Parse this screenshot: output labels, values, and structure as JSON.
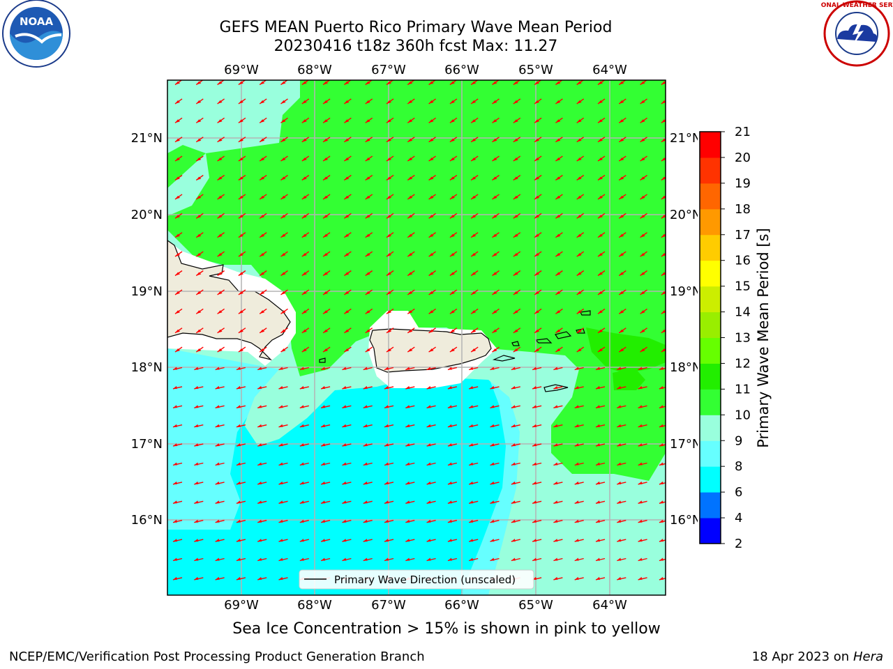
{
  "header": {
    "title_line1": "GEFS MEAN Puerto Rico Primary Wave Mean Period",
    "title_line2": "20230416 t18z 360h fcst   Max: 11.27"
  },
  "logos": {
    "left": {
      "icon": "noaa-logo",
      "text": "NOAA"
    },
    "right": {
      "icon": "nws-logo",
      "text": "NATIONAL WEATHER SERVICE"
    }
  },
  "map": {
    "lon_labels": [
      "69°W",
      "68°W",
      "67°W",
      "66°W",
      "65°W",
      "64°W"
    ],
    "lat_labels": [
      "21°N",
      "20°N",
      "19°N",
      "18°N",
      "17°N",
      "16°N"
    ],
    "legend_label": "Primary Wave Direction (unscaled)",
    "wave_direction": "from east-northeast",
    "colors": {
      "land": "#efecdc",
      "p6_8": "#00ffff",
      "p8_9": "#66ffff",
      "p9_10": "#99ffdd",
      "p10_11": "#33ff33",
      "p11_12": "#22ee00",
      "arrow": "#ff0000"
    }
  },
  "colorbar": {
    "label": "Primary Wave Mean Period [s]",
    "ticks": [
      "2",
      "4",
      "6",
      "8",
      "9",
      "10",
      "11",
      "12",
      "13",
      "14",
      "15",
      "16",
      "17",
      "18",
      "19",
      "20",
      "21"
    ],
    "colors": [
      "#0000ff",
      "#0073ff",
      "#00ffff",
      "#66ffff",
      "#99ffdd",
      "#33ff33",
      "#22ee00",
      "#66ff00",
      "#99ee00",
      "#ccee00",
      "#ffff00",
      "#ffcc00",
      "#ff9900",
      "#ff6600",
      "#ff3300",
      "#ff0000"
    ]
  },
  "footer": {
    "note": "Sea Ice Concentration > 15% is shown in pink to yellow",
    "left": "NCEP/EMC/Verification Post Processing Product Generation Branch",
    "right_prefix": "18 Apr 2023 on ",
    "right_host": "Hera"
  }
}
